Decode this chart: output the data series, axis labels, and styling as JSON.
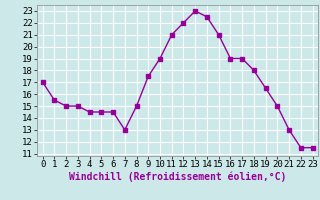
{
  "x": [
    0,
    1,
    2,
    3,
    4,
    5,
    6,
    7,
    8,
    9,
    10,
    11,
    12,
    13,
    14,
    15,
    16,
    17,
    18,
    19,
    20,
    21,
    22,
    23
  ],
  "y": [
    17,
    15.5,
    15,
    15,
    14.5,
    14.5,
    14.5,
    13,
    15,
    17.5,
    19,
    21,
    22,
    23,
    22.5,
    21,
    19,
    19,
    18,
    16.5,
    15,
    13,
    11.5,
    11.5
  ],
  "line_color": "#990099",
  "marker": "s",
  "marker_size": 2.5,
  "line_width": 1.0,
  "bg_color": "#cce8e8",
  "grid_color": "#ffffff",
  "xlabel": "Windchill (Refroidissement éolien,°C)",
  "xlabel_fontsize": 7,
  "ylabel_ticks": [
    11,
    12,
    13,
    14,
    15,
    16,
    17,
    18,
    19,
    20,
    21,
    22,
    23
  ],
  "xlim": [
    -0.5,
    23.5
  ],
  "ylim": [
    10.8,
    23.5
  ],
  "tick_fontsize": 6.5
}
